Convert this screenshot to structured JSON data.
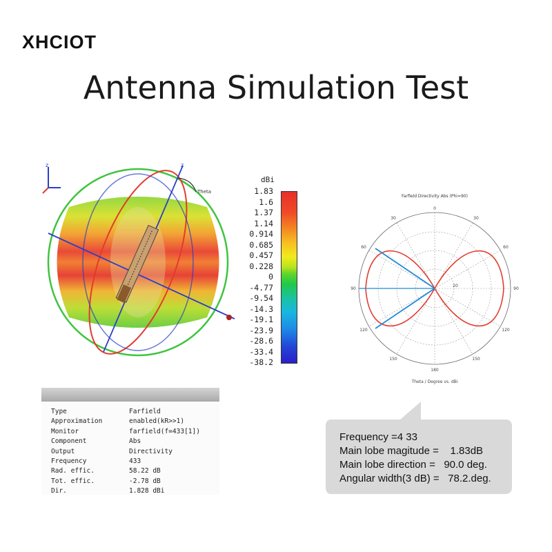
{
  "brand": "XHCIOT",
  "title": "Antenna Simulation Test",
  "sphere_plot": {
    "axis_labels": [
      "z",
      "z",
      "Theta"
    ]
  },
  "color_scale": {
    "unit": "dBi",
    "ticks": [
      "1.83",
      "1.6",
      "1.37",
      "1.14",
      "0.914",
      "0.685",
      "0.457",
      "0.228",
      "0",
      "-4.77",
      "-9.54",
      "-14.3",
      "-19.1",
      "-23.9",
      "-28.6",
      "-33.4",
      "-38.2"
    ]
  },
  "polar_plot": {
    "title": "Farfield Directivity Abs (Phi=90)",
    "xlabel": "Theta / Degree vs. dBi",
    "angle_labels": [
      "0",
      "30",
      "60",
      "90",
      "120",
      "150",
      "180",
      "150",
      "120",
      "90",
      "60",
      "30"
    ],
    "radial_labels": [
      "20"
    ]
  },
  "results_table": {
    "rows": [
      {
        "key": "Type",
        "value": "Farfield"
      },
      {
        "key": "Approximation",
        "value": "enabled(kR>>1)"
      },
      {
        "key": "Monitor",
        "value": "farfield(f=433[1])"
      },
      {
        "key": "Component",
        "value": "Abs"
      },
      {
        "key": "Output",
        "value": "Directivity"
      },
      {
        "key": "Frequency",
        "value": "433"
      },
      {
        "key": "Rad. effic.",
        "value": "58.22 dB"
      },
      {
        "key": "Tot. effic.",
        "value": "-2.78 dB"
      },
      {
        "key": "Dir.",
        "value": "1.828 dBi"
      }
    ]
  },
  "callout": {
    "lines": [
      "Frequency =4 33",
      "Main lobe magitude =    1.83dB",
      "Main lobe direction =   90.0 deg.",
      "Angular width(3 dB) =   78.2.deg."
    ]
  },
  "colors": {
    "red": "#e23b2e",
    "green": "#3ec43e",
    "blue": "#2a3fc8",
    "callout_bg": "#d9d9d9"
  }
}
